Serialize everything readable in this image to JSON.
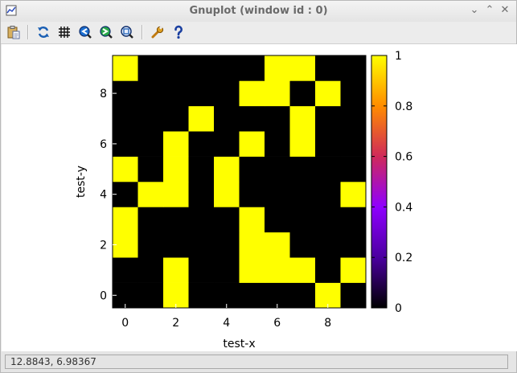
{
  "window": {
    "title": "Gnuplot (window id : 0)",
    "controls": [
      "⌄",
      "⌃",
      "✕"
    ]
  },
  "toolbar": {
    "buttons": [
      {
        "name": "copy-to-clipboard-button",
        "icon": "clipboard-icon"
      },
      {
        "name": "replot-button",
        "icon": "refresh-icon"
      },
      {
        "name": "toggle-grid-button",
        "icon": "grid-icon"
      },
      {
        "name": "previous-zoom-button",
        "icon": "zoom-back-icon"
      },
      {
        "name": "next-zoom-button",
        "icon": "zoom-forward-icon"
      },
      {
        "name": "autoscale-button",
        "icon": "zoom-fit-icon"
      },
      {
        "name": "settings-button",
        "icon": "wrench-icon"
      },
      {
        "name": "help-button",
        "icon": "question-icon"
      }
    ]
  },
  "status": {
    "coordinates": "12.8843,  6.98367"
  },
  "colors": {
    "on": "#ffff00",
    "off": "#000000",
    "palette": [
      "#000000",
      "#4b00a0",
      "#8f00ff",
      "#cf2a5a",
      "#ff8c00",
      "#ffff00"
    ]
  },
  "chart_data": {
    "type": "heatmap",
    "title": "",
    "xlabel": "test-x",
    "ylabel": "test-y",
    "x": [
      0,
      1,
      2,
      3,
      4,
      5,
      6,
      7,
      8,
      9
    ],
    "y": [
      0,
      1,
      2,
      3,
      4,
      5,
      6,
      7,
      8,
      9
    ],
    "xlim": [
      -0.5,
      9.5
    ],
    "ylim": [
      -0.5,
      9.5
    ],
    "xticks": [
      0,
      2,
      4,
      6,
      8
    ],
    "yticks": [
      0,
      2,
      4,
      6,
      8
    ],
    "cbrange": [
      0,
      1
    ],
    "cbticks": [
      0,
      0.2,
      0.4,
      0.6,
      0.8,
      1
    ],
    "z_rows_from_y0": [
      [
        0,
        0,
        1,
        0,
        0,
        0,
        0,
        0,
        1,
        0
      ],
      [
        0,
        0,
        1,
        0,
        0,
        1,
        1,
        1,
        0,
        1
      ],
      [
        1,
        0,
        0,
        0,
        0,
        1,
        1,
        0,
        0,
        0
      ],
      [
        1,
        0,
        0,
        0,
        0,
        1,
        0,
        0,
        0,
        0
      ],
      [
        0,
        1,
        1,
        0,
        1,
        0,
        0,
        0,
        0,
        1
      ],
      [
        1,
        0,
        1,
        0,
        1,
        0,
        0,
        0,
        0,
        0
      ],
      [
        0,
        0,
        1,
        0,
        0,
        1,
        0,
        1,
        0,
        0
      ],
      [
        0,
        0,
        0,
        1,
        0,
        0,
        0,
        1,
        0,
        0
      ],
      [
        0,
        0,
        0,
        0,
        0,
        1,
        1,
        0,
        1,
        0
      ],
      [
        1,
        0,
        0,
        0,
        0,
        0,
        1,
        1,
        0,
        0
      ]
    ]
  }
}
